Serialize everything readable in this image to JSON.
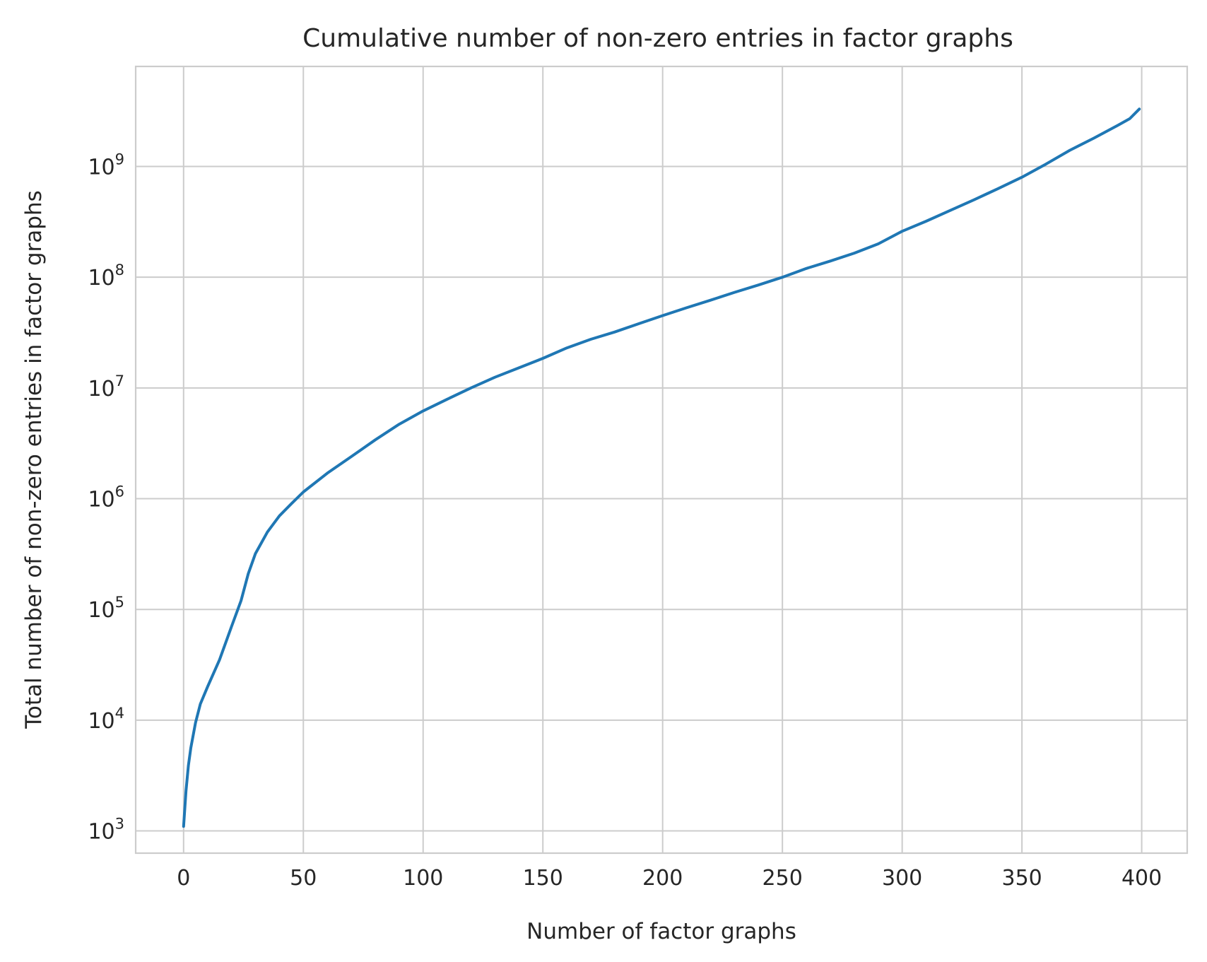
{
  "chart_data": {
    "type": "line",
    "title": "Cumulative number of non-zero entries in factor graphs",
    "xlabel": "Number of factor graphs",
    "ylabel": "Total number of non-zero entries in factor graphs",
    "xlim": [
      -20,
      419
    ],
    "ylim": [
      630,
      8000000000
    ],
    "yscale": "log",
    "grid": true,
    "xticks": [
      0,
      50,
      100,
      150,
      200,
      250,
      300,
      350,
      400
    ],
    "xtick_labels": [
      "0",
      "50",
      "100",
      "150",
      "200",
      "250",
      "300",
      "350",
      "400"
    ],
    "yticks": [
      1000,
      10000,
      100000,
      1000000,
      10000000,
      100000000,
      1000000000
    ],
    "ytick_labels": [
      {
        "base": "10",
        "exp": "3"
      },
      {
        "base": "10",
        "exp": "4"
      },
      {
        "base": "10",
        "exp": "5"
      },
      {
        "base": "10",
        "exp": "6"
      },
      {
        "base": "10",
        "exp": "7"
      },
      {
        "base": "10",
        "exp": "8"
      },
      {
        "base": "10",
        "exp": "9"
      }
    ],
    "series": [
      {
        "color": "#1f77b4",
        "x": [
          0,
          1,
          2,
          3,
          5,
          7,
          10,
          15,
          20,
          24,
          27,
          30,
          35,
          40,
          45,
          50,
          60,
          70,
          80,
          90,
          100,
          110,
          120,
          130,
          140,
          150,
          160,
          170,
          180,
          190,
          200,
          210,
          220,
          230,
          240,
          250,
          260,
          270,
          280,
          290,
          300,
          310,
          320,
          330,
          340,
          350,
          360,
          370,
          380,
          390,
          395,
          399
        ],
        "y": [
          1100,
          2300,
          3900,
          5600,
          9500,
          14000,
          20000,
          35000,
          70000,
          120000,
          210000,
          320000,
          500000,
          700000,
          900000,
          1150000,
          1700000,
          2400000,
          3400000,
          4700000,
          6200000,
          7900000,
          10000000,
          12500000,
          15200000,
          18500000,
          23000000,
          27500000,
          32000000,
          38000000,
          45000000,
          53000000,
          62000000,
          73000000,
          85000000,
          100000000,
          120000000,
          140000000,
          165000000,
          200000000,
          260000000,
          320000000,
          400000000,
          500000000,
          630000000,
          800000000,
          1050000000,
          1400000000,
          1800000000,
          2350000000,
          2700000000,
          3300000000
        ]
      }
    ]
  }
}
